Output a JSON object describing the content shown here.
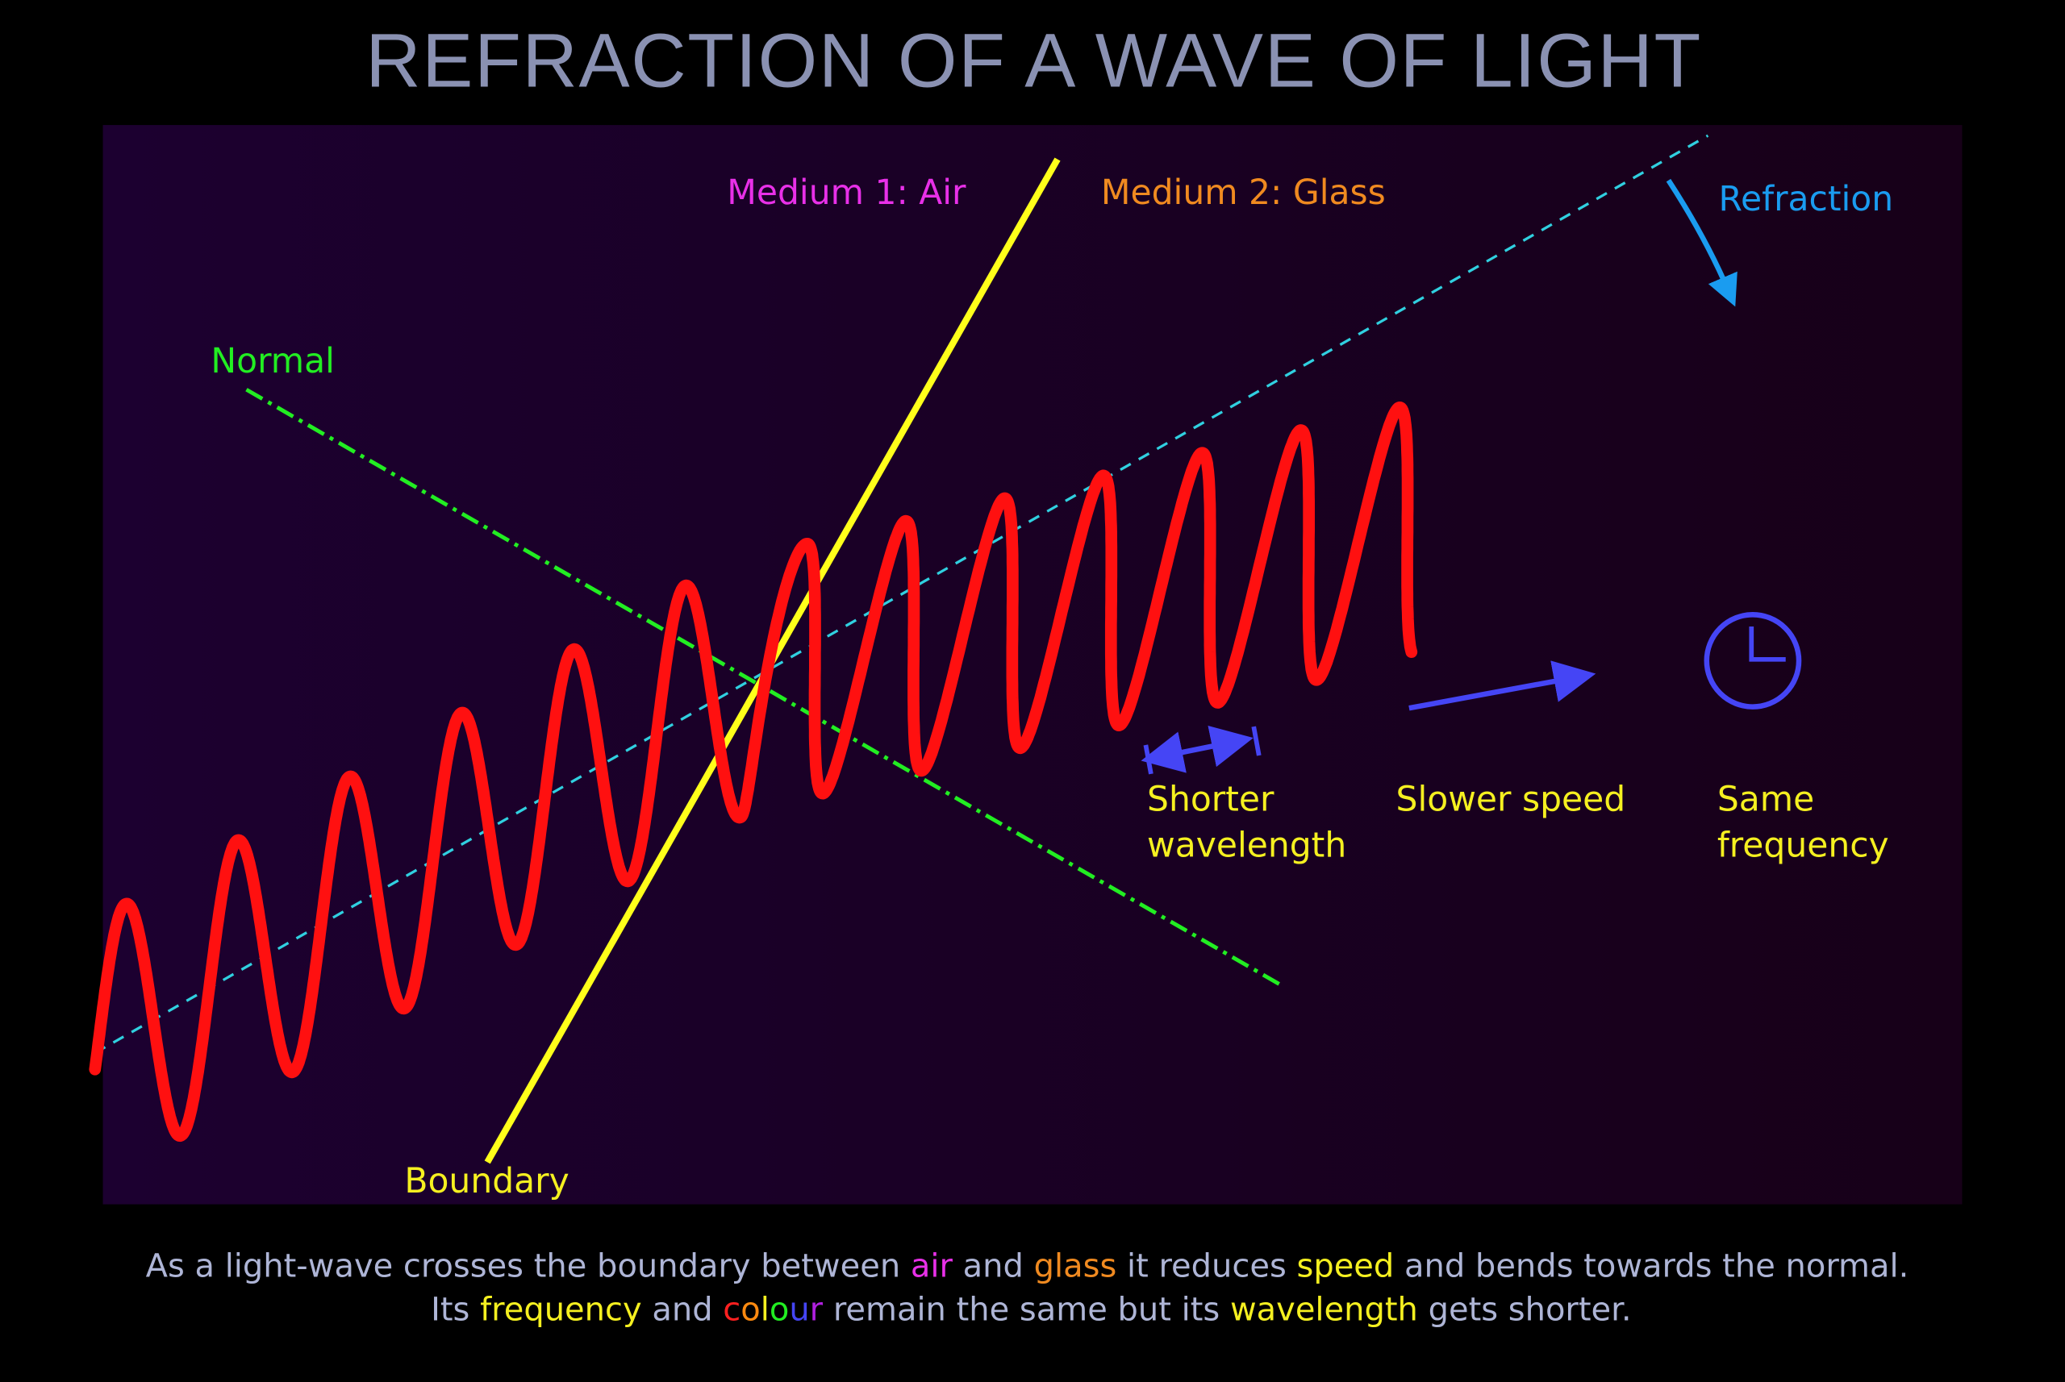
{
  "title": "REFRACTION OF A WAVE OF LIGHT",
  "colors": {
    "background": "#000000",
    "panel_left": "#1c0030",
    "panel_right": "#170018",
    "title": "#8a91b2",
    "wave": "#ff1010",
    "boundary": "#ffff1a",
    "normal": "#22ee22",
    "axis": "#30d0e0",
    "refraction": "#1a9cf0",
    "annotation": "#4545f5",
    "air": "#e830e8",
    "glass": "#f08a20",
    "yellow_text": "#f5f020",
    "caption": "#aeb5d6"
  },
  "labels": {
    "medium1": "Medium 1: Air",
    "medium2": "Medium 2: Glass",
    "normal": "Normal",
    "boundary": "Boundary",
    "refraction": "Refraction",
    "shorter_1": "Shorter",
    "shorter_2": "wavelength",
    "slower": "Slower speed",
    "same_1": "Same",
    "same_2": "frequency"
  },
  "icons": {
    "clock": "clock-icon",
    "speed_arrow": "arrow-right-icon",
    "wavelength_arrow": "double-arrow-icon",
    "refraction_arrow": "curved-arrow-icon"
  },
  "caption": {
    "line1": {
      "t1": "As a light-wave crosses the boundary between ",
      "air": "air",
      "t2": " and ",
      "glass": "glass",
      "t3": " it reduces ",
      "speed": "speed",
      "t4": " and bends towards the normal."
    },
    "line2": {
      "t1": "Its ",
      "frequency": "frequency",
      "t2": " and ",
      "c": "c",
      "o1": "o",
      "l": "l",
      "o2": "o",
      "u": "u",
      "r": "r",
      "t3": " remain the same but its ",
      "wavelength": "wavelength",
      "t4": " gets shorter."
    }
  }
}
